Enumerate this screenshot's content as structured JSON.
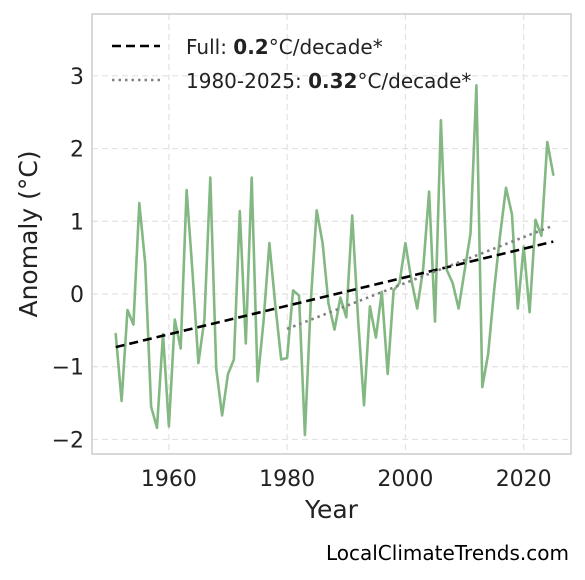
{
  "chart_data": {
    "type": "line",
    "title": "",
    "xlabel": "Year",
    "ylabel": "Anomaly (°C)",
    "xlim": [
      1947,
      2028
    ],
    "ylim": [
      -2.2,
      3.85
    ],
    "xticks": [
      1960,
      1980,
      2000,
      2020
    ],
    "yticks": [
      -2,
      -1,
      0,
      1,
      2,
      3
    ],
    "ytick_labels": [
      "−2",
      "−1",
      "0",
      "1",
      "2",
      "3"
    ],
    "grid": true,
    "legend_position": "top-left",
    "series": [
      {
        "color": "#83b883",
        "style": "solid",
        "x": [
          1951,
          1952,
          1953,
          1954,
          1955,
          1956,
          1957,
          1958,
          1959,
          1960,
          1961,
          1962,
          1963,
          1964,
          1965,
          1966,
          1967,
          1968,
          1969,
          1970,
          1971,
          1972,
          1973,
          1974,
          1975,
          1976,
          1977,
          1978,
          1979,
          1980,
          1981,
          1982,
          1983,
          1984,
          1985,
          1986,
          1987,
          1988,
          1989,
          1990,
          1991,
          1992,
          1993,
          1994,
          1995,
          1996,
          1997,
          1998,
          1999,
          2000,
          2001,
          2002,
          2003,
          2004,
          2005,
          2006,
          2007,
          2008,
          2009,
          2010,
          2011,
          2012,
          2013,
          2014,
          2015,
          2016,
          2017,
          2018,
          2019,
          2020,
          2021,
          2022,
          2023,
          2024,
          2025
        ],
        "y": [
          -0.55,
          -1.47,
          -0.22,
          -0.42,
          1.25,
          0.42,
          -1.55,
          -1.84,
          -0.55,
          -1.82,
          -0.35,
          -0.75,
          1.43,
          0.3,
          -0.95,
          -0.35,
          1.6,
          -1.02,
          -1.67,
          -1.1,
          -0.9,
          1.14,
          -0.68,
          1.6,
          -1.2,
          -0.38,
          0.7,
          -0.15,
          -0.9,
          -0.88,
          0.05,
          -0.02,
          -1.94,
          -0.1,
          1.15,
          0.7,
          -0.13,
          -0.49,
          -0.05,
          -0.32,
          1.08,
          -0.35,
          -1.53,
          -0.17,
          -0.6,
          0.03,
          -1.1,
          0.05,
          0.15,
          0.7,
          0.2,
          -0.2,
          0.35,
          1.41,
          -0.38,
          2.39,
          0.33,
          0.15,
          -0.2,
          0.32,
          0.83,
          2.87,
          -1.28,
          -0.82,
          0.05,
          0.8,
          1.46,
          1.1,
          -0.2,
          0.65,
          -0.25,
          1.02,
          0.8,
          2.09,
          1.64
        ]
      },
      {
        "name": "Full",
        "color": "#000000",
        "style": "dashed",
        "x": [
          1951,
          2025
        ],
        "y": [
          -0.73,
          0.72
        ]
      },
      {
        "name": "1980-2025",
        "color": "#808080",
        "style": "dotted",
        "x": [
          1980,
          2025
        ],
        "y": [
          -0.48,
          0.94
        ]
      }
    ]
  },
  "legend": {
    "items": [
      {
        "prefix": "Full: ",
        "value": "0.2",
        "suffix": "°C/decade*"
      },
      {
        "prefix": "1980-2025: ",
        "value": "0.32",
        "suffix": "°C/decade*"
      }
    ]
  },
  "footer": {
    "source": "LocalClimateTrends.com"
  }
}
